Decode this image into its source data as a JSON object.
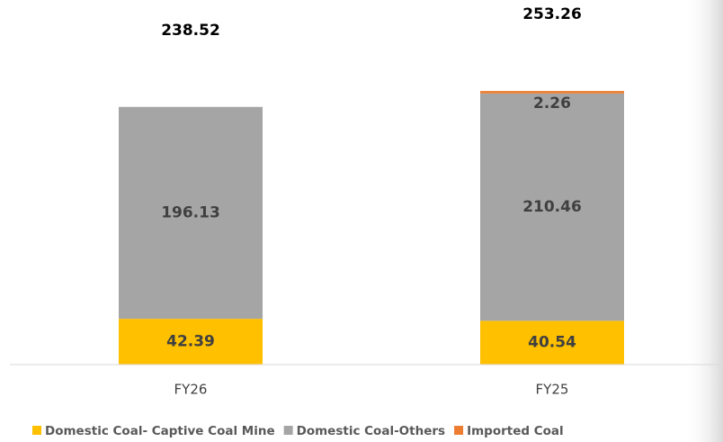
{
  "chart_data": {
    "type": "stacked-bar",
    "categories": [
      "FY26",
      "FY25"
    ],
    "series": [
      {
        "name": "Domestic Coal- Captive Coal Mine",
        "color": "#ffc000",
        "values": [
          42.39,
          40.54
        ]
      },
      {
        "name": "Domestic Coal-Others",
        "color": "#a5a5a5",
        "values": [
          196.13,
          210.46
        ]
      },
      {
        "name": "Imported Coal",
        "color": "#ed7d31",
        "values": [
          0,
          2.26
        ]
      }
    ],
    "totals": [
      238.52,
      253.26
    ],
    "ylim": [
      0,
      300
    ],
    "legend": "bottom"
  }
}
